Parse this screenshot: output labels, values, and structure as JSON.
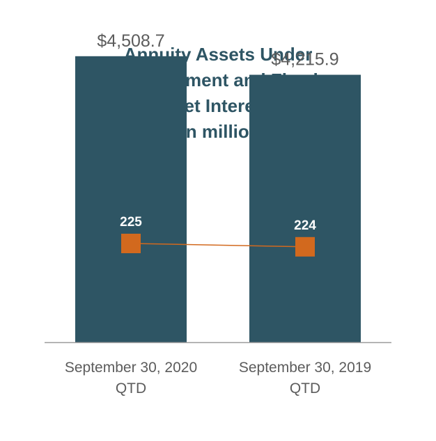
{
  "chart_data": {
    "type": "bar",
    "title_lines": [
      "Annuity Assets Under",
      "Management and Fixed",
      "Annuity Net Interest Spread",
      "($ in millions)"
    ],
    "categories": [
      [
        "September 30, 2020",
        "QTD"
      ],
      [
        "September 30, 2019",
        "QTD"
      ]
    ],
    "series": [
      {
        "type": "bar",
        "values": [
          4508.7,
          4215.9
        ],
        "value_labels": [
          "$4,508.7",
          "$4,215.9"
        ],
        "color": "#2e5564"
      },
      {
        "type": "line",
        "values": [
          225,
          224
        ],
        "value_labels": [
          "225",
          "224"
        ],
        "color": "#d2691e"
      }
    ],
    "ylim": [
      0,
      5000
    ],
    "grid": false
  }
}
